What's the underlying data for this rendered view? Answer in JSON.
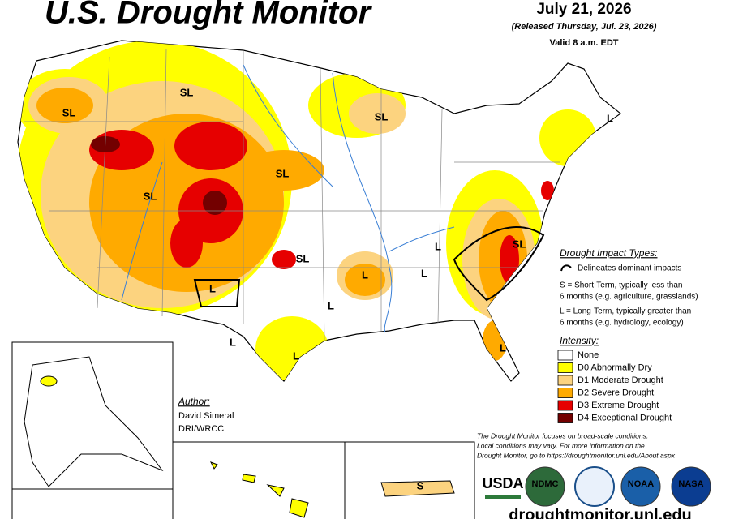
{
  "header": {
    "title": "U.S. Drought Monitor",
    "date": "July 21, 2026",
    "released": "(Released Thursday, Jul. 23, 2026)",
    "valid": "Valid 8 a.m. EDT"
  },
  "impact": {
    "heading": "Drought Impact Types:",
    "delineates": "Delineates dominant impacts",
    "s_lines": [
      "S = Short-Term, typically less than",
      "6 months (e.g. agriculture, grasslands)"
    ],
    "l_lines": [
      "L = Long-Term, typically greater than",
      "6 months (e.g. hydrology, ecology)"
    ]
  },
  "intensity": {
    "heading": "Intensity:",
    "items": [
      {
        "label": "None",
        "color": "#ffffff"
      },
      {
        "label": "D0 Abnormally Dry",
        "color": "#ffff00"
      },
      {
        "label": "D1 Moderate Drought",
        "color": "#fcd37f"
      },
      {
        "label": "D2 Severe Drought",
        "color": "#ffaa00"
      },
      {
        "label": "D3 Extreme Drought",
        "color": "#e60000"
      },
      {
        "label": "D4 Exceptional Drought",
        "color": "#730000"
      }
    ]
  },
  "author": {
    "heading": "Author:",
    "name": "David Simeral",
    "org": "DRI/WRCC"
  },
  "note": [
    "The Drought Monitor focuses on broad-scale conditions.",
    "Local conditions may vary. For more information on the",
    "Drought Monitor, go to https://droughtmonitor.unl.edu/About.aspx"
  ],
  "map_labels": [
    "SL",
    "SL",
    "SL",
    "L",
    "SL",
    "SL",
    "SL",
    "SL",
    "L",
    "L",
    "L",
    "L",
    "L",
    "L",
    "L",
    "L",
    "S"
  ],
  "logos": [
    "USDA",
    "NDMC",
    "NOAA",
    "NASA"
  ],
  "url": "droughtmonitor.unl.edu"
}
